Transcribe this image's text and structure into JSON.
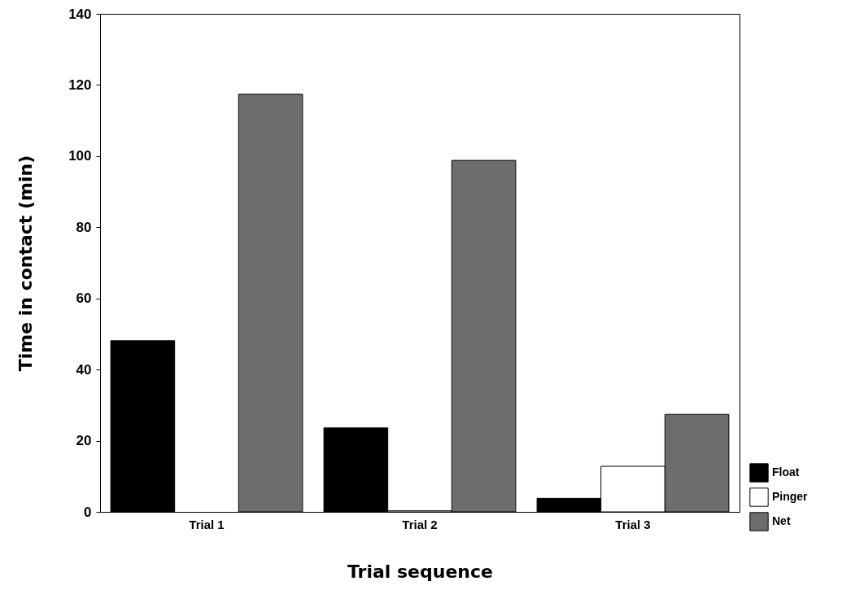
{
  "chart_data": {
    "type": "bar",
    "xlabel": "Trial sequence",
    "ylabel": "Time in contact (min)",
    "categories": [
      "Trial 1",
      "Trial 2",
      "Trial 3"
    ],
    "series": [
      {
        "name": "Float",
        "color": "#000000",
        "values": [
          48.1,
          23.6,
          3.8
        ]
      },
      {
        "name": "Pinger",
        "color": "#ffffff",
        "values": [
          null,
          0.3,
          12.8
        ]
      },
      {
        "name": "Net",
        "color": "#6d6d6d",
        "values": [
          117.4,
          98.8,
          27.4
        ]
      }
    ],
    "ylim": [
      0,
      140
    ],
    "yticks": [
      0,
      20,
      40,
      60,
      80,
      100,
      120,
      140
    ],
    "grid": false,
    "legend": "bottom right"
  }
}
